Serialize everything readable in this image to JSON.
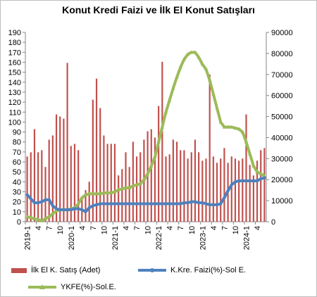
{
  "chart_data": {
    "type": "bar",
    "title": "Konut Kredi Faizi ve İlk El Konut Satışları",
    "left_axis": {
      "min": 0,
      "max": 190,
      "step": 10
    },
    "right_axis": {
      "min": 0,
      "max": 90000,
      "step": 10000
    },
    "x_tick_labels": [
      "2019-1",
      "4",
      "7",
      "10",
      "2020-1",
      "4",
      "7",
      "10",
      "2021-1",
      "4",
      "7",
      "10",
      "2022-1",
      "4",
      "7",
      "10",
      "2023-1",
      "4",
      "7",
      "10",
      "2024-1",
      "4"
    ],
    "n_points": 66,
    "colors": {
      "bars": "#c0504d",
      "faiz": "#4f81bd",
      "ykfe": "#9bbb59"
    },
    "series": [
      {
        "name": "İlk El K. Satış (Adet)",
        "axis": "right",
        "kind": "bar",
        "values": [
          31000,
          33000,
          44000,
          33000,
          34000,
          26000,
          39000,
          41000,
          51000,
          50000,
          49000,
          75500,
          36000,
          37000,
          34000,
          12000,
          15000,
          19000,
          58000,
          68000,
          54000,
          41000,
          37000,
          37000,
          37000,
          22000,
          25000,
          33000,
          26000,
          38000,
          31000,
          33000,
          39000,
          43000,
          44000,
          40000,
          55000,
          76000,
          31000,
          32000,
          39000,
          38000,
          34000,
          34000,
          30000,
          33000,
          39000,
          33000,
          29000,
          30000,
          70000,
          31000,
          28000,
          30000,
          35000,
          28000,
          31000,
          30000,
          29000,
          30000,
          51000,
          27000,
          22000,
          29000,
          34000,
          35000
        ]
      },
      {
        "name": "K.Kre. Faizi(%)-Sol E.",
        "axis": "left",
        "kind": "line",
        "values": [
          27,
          23,
          19,
          19,
          20,
          22,
          22,
          16,
          13,
          12,
          12,
          12,
          12,
          13,
          13,
          12,
          10,
          14,
          16,
          17,
          18,
          18,
          18,
          18,
          18,
          18,
          18,
          18,
          18,
          18,
          18,
          18,
          18,
          18,
          18,
          18,
          18,
          18,
          18,
          18,
          18,
          18,
          18,
          19,
          19,
          20,
          20,
          19,
          19,
          18,
          17,
          17,
          17,
          18,
          24,
          31,
          37,
          40,
          41,
          41,
          41,
          41,
          41,
          41,
          43,
          44
        ]
      },
      {
        "name": "YKFE(%)-Sol.E.",
        "axis": "left",
        "kind": "line",
        "values": [
          5,
          4,
          3,
          2,
          1,
          3,
          5,
          8,
          11,
          12,
          12,
          12,
          13,
          14,
          18,
          24,
          27,
          28,
          28,
          28,
          28,
          29,
          29,
          29,
          30,
          32,
          33,
          34,
          34,
          36,
          37,
          38,
          42,
          48,
          56,
          65,
          80,
          95,
          110,
          122,
          134,
          145,
          155,
          163,
          168,
          170,
          170,
          165,
          158,
          153,
          142,
          128,
          114,
          100,
          95,
          95,
          95,
          94,
          93,
          90,
          80,
          68,
          56,
          50,
          48,
          46
        ]
      }
    ]
  }
}
